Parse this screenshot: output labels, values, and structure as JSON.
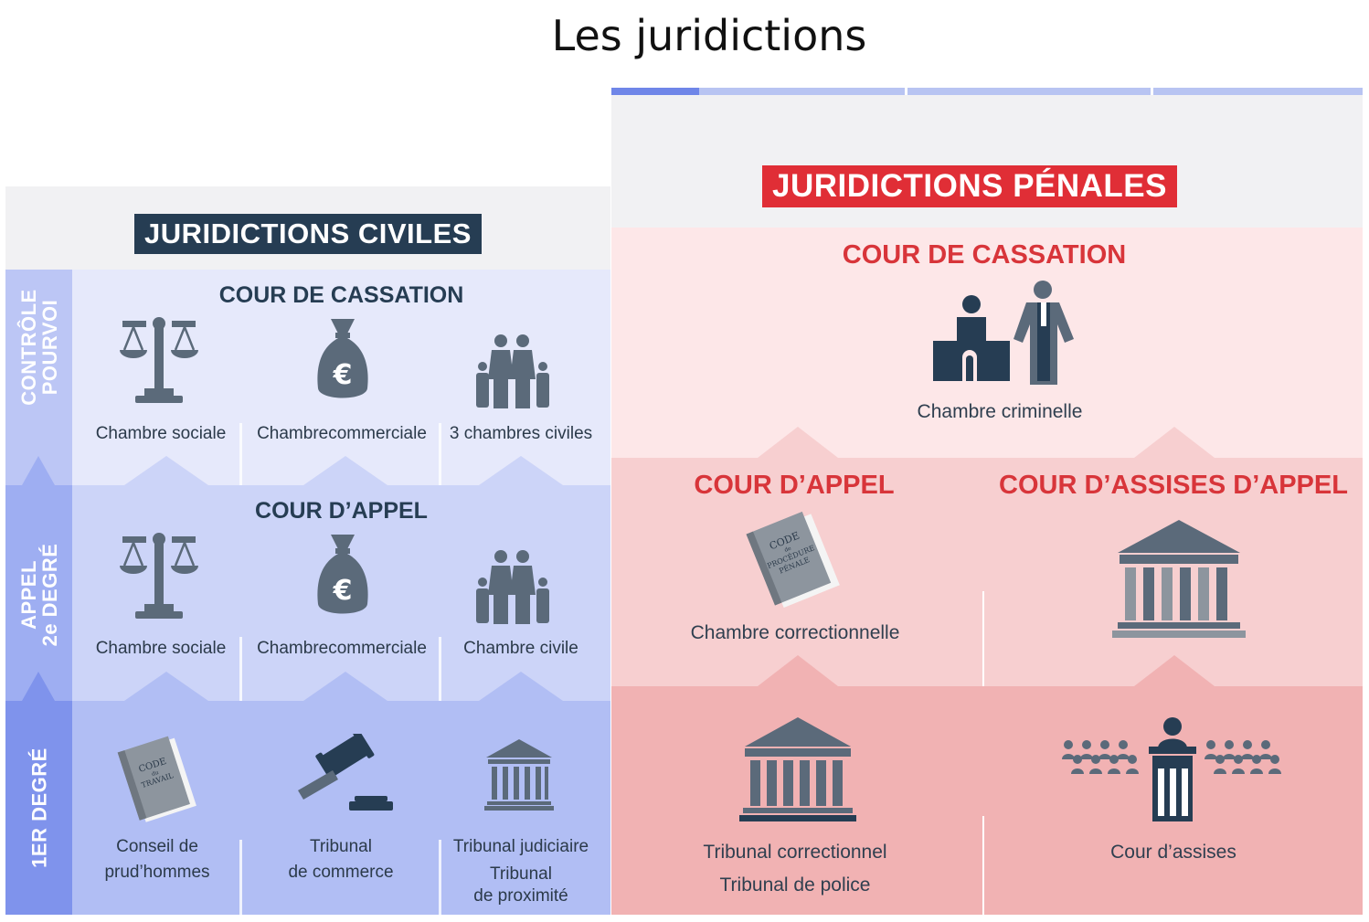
{
  "title": "Les juridictions",
  "civil": {
    "badge": "JURIDICTIONS CIVILES",
    "levels": [
      {
        "side_label_1": "CONTRÔLE",
        "side_label_2": "POURVOI",
        "heading": "COUR DE CASSATION",
        "cells": [
          "Chambre sociale",
          "Chambrecommerciale",
          "3 chambres civiles"
        ]
      },
      {
        "side_label_1": "APPEL",
        "side_label_2": "2e DEGRÉ",
        "heading": "COUR D’APPEL",
        "cells": [
          "Chambre sociale",
          "Chambrecommerciale",
          "Chambre civile"
        ]
      },
      {
        "side_label_1": "1ER DEGRÉ",
        "cells": [
          {
            "line1": "Conseil de",
            "line2": "prud’hommes"
          },
          {
            "line1": "Tribunal",
            "line2": "de commerce"
          },
          {
            "line1": "Tribunal judiciaire",
            "line2": "Tribunal",
            "line3": "de proximité"
          }
        ]
      }
    ],
    "icons": [
      "scales-icon",
      "money-bag-icon",
      "family-icon",
      "code-book-icon",
      "gavel-icon",
      "courthouse-icon"
    ],
    "code_travail_text": [
      "CODE",
      "du",
      "TRAVAIL"
    ],
    "colors": {
      "band1": "#e6e9fb",
      "band2": "#ccd4f8",
      "band3": "#b1bef4",
      "label1": "#bcc6f5",
      "label2": "#9eaef2",
      "label3": "#7f93ec",
      "badge": "#263d53"
    }
  },
  "penal": {
    "badge": "JURIDICTIONS PÉNALES",
    "cassation": {
      "heading": "COUR DE CASSATION",
      "cell": "Chambre criminelle"
    },
    "appel": {
      "heading": "COUR D’APPEL",
      "cell": "Chambre correctionnelle"
    },
    "assises_appel": {
      "heading": "COUR D’ASSISES D’APPEL"
    },
    "first": {
      "left_line1": "Tribunal correctionnel",
      "left_line2": "Tribunal de police",
      "right": "Cour d’assises"
    },
    "code_penal_text": [
      "CODE",
      "de",
      "PROCÉDURE",
      "PÉNALE"
    ],
    "icons": [
      "judges-icon",
      "code-book-icon",
      "courthouse-icon",
      "assize-court-icon"
    ],
    "colors": {
      "band1": "#fde7e8",
      "band2": "#f7cfd0",
      "band3": "#f1b2b3",
      "badge": "#e02e36",
      "heading": "#d8353a"
    }
  }
}
